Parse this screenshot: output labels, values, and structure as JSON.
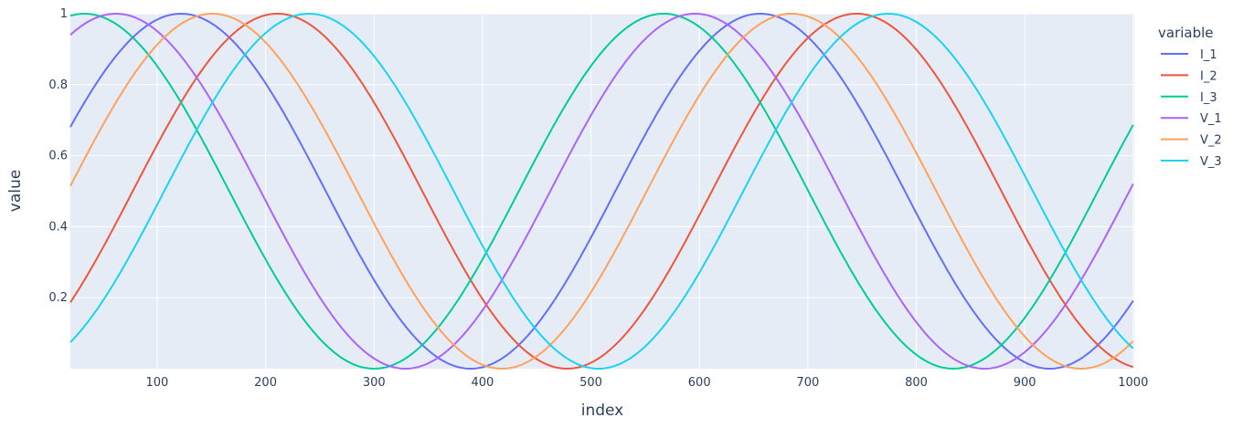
{
  "chart_data": {
    "type": "line",
    "xlabel": "index",
    "ylabel": "value",
    "xlim": [
      20,
      1001
    ],
    "ylim": [
      0.0,
      1.0
    ],
    "x_ticks": [
      100,
      200,
      300,
      400,
      500,
      600,
      700,
      800,
      900,
      1000
    ],
    "y_ticks": [
      0.2,
      0.4,
      0.6,
      0.8,
      1
    ],
    "y_tick_labels": [
      "0.2",
      "0.4",
      "0.6",
      "0.8",
      "1"
    ],
    "grid": true,
    "plot_background": "#e5ecf6",
    "legend": {
      "title": "variable",
      "placement": "right"
    },
    "period": 534,
    "series": [
      {
        "name": "I_1",
        "color": "#636efa",
        "peak_index": 122
      },
      {
        "name": "I_2",
        "color": "#ef553b",
        "peak_index": 211
      },
      {
        "name": "I_3",
        "color": "#00cc96",
        "peak_index": 33
      },
      {
        "name": "V_1",
        "color": "#ab63fa",
        "peak_index": 62
      },
      {
        "name": "V_2",
        "color": "#ffa15a",
        "peak_index": 151
      },
      {
        "name": "V_3",
        "color": "#19d3f3",
        "peak_index": 240
      }
    ]
  }
}
